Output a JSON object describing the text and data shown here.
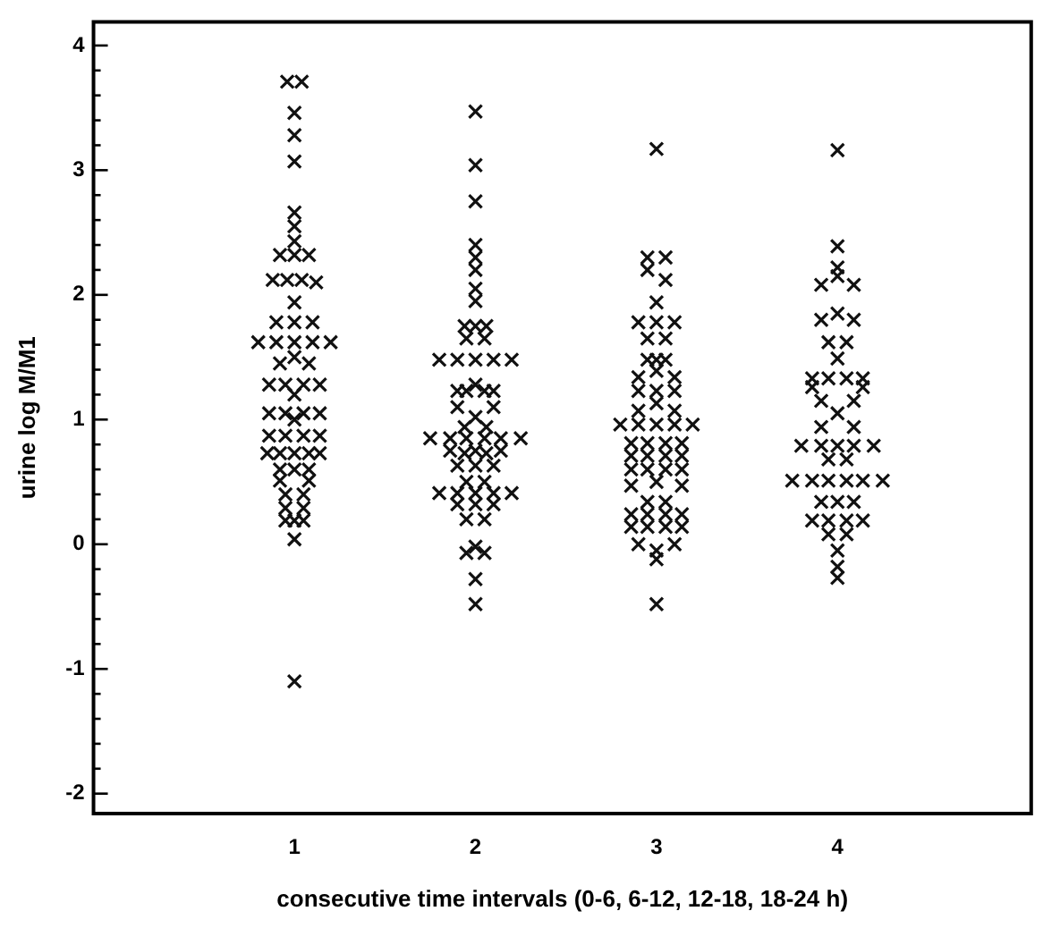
{
  "chart_data": {
    "type": "scatter",
    "xlabel": "consecutive time intervals (0-6, 6-12, 12-18, 18-24 h)",
    "ylabel": "urine log M/M1",
    "xlim": [
      -0.11,
      5.07
    ],
    "xticks": [
      1,
      2,
      3,
      4
    ],
    "ylim": [
      -2.16,
      4.19
    ],
    "yticks": [
      -2,
      {
        "value": -1.8,
        "label": null
      },
      {
        "value": -1.6,
        "label": null
      },
      {
        "value": -1.4,
        "label": null
      },
      {
        "value": -1.2,
        "label": null
      },
      -1,
      {
        "value": -0.8,
        "label": null
      },
      {
        "value": -0.6,
        "label": null
      },
      {
        "value": -0.4,
        "label": null
      },
      {
        "value": -0.2,
        "label": null
      },
      0,
      {
        "value": 0.2,
        "label": null
      },
      {
        "value": 0.4,
        "label": null
      },
      {
        "value": 0.6,
        "label": null
      },
      {
        "value": 0.8,
        "label": null
      },
      1,
      {
        "value": 1.2,
        "label": null
      },
      {
        "value": 1.4,
        "label": null
      },
      {
        "value": 1.6,
        "label": null
      },
      {
        "value": 1.8,
        "label": null
      },
      2,
      {
        "value": 2.2,
        "label": null
      },
      {
        "value": 2.4,
        "label": null
      },
      {
        "value": 2.6,
        "label": null
      },
      {
        "value": 2.8,
        "label": null
      },
      3,
      {
        "value": 3.2,
        "label": null
      },
      {
        "value": 3.4,
        "label": null
      },
      {
        "value": 3.6,
        "label": null
      },
      {
        "value": 3.8,
        "label": null
      },
      4
    ],
    "marker": "cross",
    "grid": false,
    "legend": false,
    "series": [
      {
        "color": "#111111",
        "x": [
          0.96,
          1.04,
          1,
          1,
          1,
          1,
          1,
          1,
          0.92,
          1,
          1.08,
          0.88,
          0.96,
          1.04,
          1.12,
          1,
          0.9,
          1,
          1.1,
          0.8,
          0.9,
          1,
          1.1,
          1.2,
          0.92,
          1,
          1.08,
          0.86,
          0.95,
          1.05,
          1.14,
          1,
          0.86,
          0.95,
          1.05,
          1.14,
          1,
          0.86,
          0.95,
          1.05,
          1.14,
          0.85,
          0.92,
          1,
          1.08,
          1.14,
          0.92,
          1,
          1.08,
          0.92,
          1.08,
          0.95,
          1.05,
          0.95,
          1.05,
          0.95,
          1,
          1.05,
          1,
          1
        ],
        "values": [
          3.71,
          3.71,
          3.46,
          3.28,
          3.07,
          2.66,
          2.55,
          2.43,
          2.32,
          2.32,
          2.32,
          2.12,
          2.12,
          2.12,
          2.1,
          1.94,
          1.78,
          1.78,
          1.78,
          1.62,
          1.62,
          1.62,
          1.62,
          1.62,
          1.45,
          1.5,
          1.45,
          1.28,
          1.28,
          1.28,
          1.28,
          1.2,
          1.05,
          1.05,
          1.05,
          1.05,
          1.0,
          0.87,
          0.87,
          0.87,
          0.87,
          0.73,
          0.73,
          0.73,
          0.73,
          0.73,
          0.6,
          0.6,
          0.6,
          0.51,
          0.51,
          0.4,
          0.4,
          0.29,
          0.29,
          0.19,
          0.19,
          0.19,
          0.04,
          -1.1
        ]
      },
      {
        "color": "#111111",
        "x": [
          2,
          2,
          2,
          2,
          2,
          2,
          2,
          2,
          1.94,
          2,
          2.06,
          1.95,
          2.05,
          1.8,
          1.9,
          2,
          2.1,
          2.2,
          1.9,
          1.95,
          2,
          2.05,
          2.1,
          1.9,
          2.1,
          2,
          1.94,
          2.06,
          1.75,
          1.86,
          1.95,
          2.05,
          2.14,
          2.25,
          1.86,
          1.94,
          2,
          2.06,
          2.14,
          1.9,
          2,
          2.1,
          1.95,
          2.05,
          1.8,
          1.9,
          2,
          2.1,
          2.2,
          1.9,
          2,
          2.1,
          1.95,
          2.05,
          2,
          1.95,
          2.05,
          2,
          2
        ],
        "values": [
          3.47,
          3.04,
          2.75,
          2.4,
          2.3,
          2.2,
          2.05,
          1.95,
          1.75,
          1.75,
          1.75,
          1.65,
          1.65,
          1.48,
          1.48,
          1.48,
          1.48,
          1.48,
          1.23,
          1.23,
          1.28,
          1.23,
          1.23,
          1.1,
          1.1,
          1.02,
          0.94,
          0.94,
          0.85,
          0.85,
          0.85,
          0.85,
          0.85,
          0.85,
          0.75,
          0.73,
          0.75,
          0.73,
          0.75,
          0.63,
          0.63,
          0.63,
          0.5,
          0.5,
          0.41,
          0.41,
          0.41,
          0.41,
          0.41,
          0.32,
          0.32,
          0.32,
          0.2,
          0.2,
          -0.02,
          -0.07,
          -0.07,
          -0.28,
          -0.48
        ]
      },
      {
        "color": "#111111",
        "x": [
          3,
          2.95,
          3.05,
          2.95,
          3.05,
          3,
          2.9,
          3,
          3.1,
          2.95,
          3.05,
          2.95,
          3,
          3.05,
          3,
          2.9,
          3.1,
          2.9,
          3,
          3.1,
          3,
          2.9,
          3.1,
          2.8,
          2.9,
          3,
          3.1,
          3.2,
          2.86,
          2.95,
          3.05,
          3.14,
          2.86,
          2.95,
          3.05,
          3.14,
          2.86,
          2.95,
          3.05,
          3.14,
          3,
          2.86,
          3.14,
          2.95,
          3.05,
          2.86,
          2.95,
          3.05,
          3.14,
          2.86,
          2.95,
          3.05,
          3.14,
          2.9,
          3,
          3.1,
          3,
          3
        ],
        "values": [
          3.17,
          2.3,
          2.3,
          2.2,
          2.12,
          1.94,
          1.78,
          1.78,
          1.78,
          1.65,
          1.65,
          1.48,
          1.48,
          1.48,
          1.39,
          1.34,
          1.34,
          1.23,
          1.23,
          1.23,
          1.13,
          1.07,
          1.07,
          0.96,
          0.96,
          0.96,
          0.96,
          0.96,
          0.81,
          0.81,
          0.81,
          0.81,
          0.71,
          0.71,
          0.71,
          0.71,
          0.6,
          0.6,
          0.6,
          0.6,
          0.5,
          0.47,
          0.47,
          0.34,
          0.34,
          0.24,
          0.24,
          0.24,
          0.24,
          0.14,
          0.14,
          0.14,
          0.14,
          0,
          -0.05,
          0,
          -0.12,
          -0.48
        ]
      },
      {
        "color": "#111111",
        "x": [
          4,
          4,
          4,
          3.91,
          4,
          4.09,
          3.91,
          4,
          4.09,
          3.95,
          4.05,
          4,
          3.86,
          3.95,
          4.05,
          4.14,
          3.86,
          4.14,
          3.91,
          4.09,
          4,
          3.91,
          4.09,
          3.8,
          3.91,
          4,
          4.09,
          4.2,
          3.95,
          4.05,
          3.75,
          3.86,
          3.95,
          4.05,
          4.14,
          4.25,
          3.91,
          4,
          4.09,
          3.86,
          3.95,
          4.05,
          4.14,
          3.95,
          4.05,
          4,
          4,
          4
        ],
        "values": [
          3.16,
          2.39,
          2.22,
          2.08,
          2.15,
          2.08,
          1.8,
          1.85,
          1.8,
          1.62,
          1.62,
          1.49,
          1.33,
          1.33,
          1.33,
          1.33,
          1.26,
          1.26,
          1.15,
          1.15,
          1.05,
          0.94,
          0.94,
          0.79,
          0.79,
          0.79,
          0.79,
          0.79,
          0.68,
          0.68,
          0.51,
          0.51,
          0.51,
          0.51,
          0.51,
          0.51,
          0.34,
          0.34,
          0.34,
          0.19,
          0.19,
          0.19,
          0.19,
          0.08,
          0.08,
          -0.05,
          -0.18,
          -0.27
        ]
      }
    ]
  }
}
